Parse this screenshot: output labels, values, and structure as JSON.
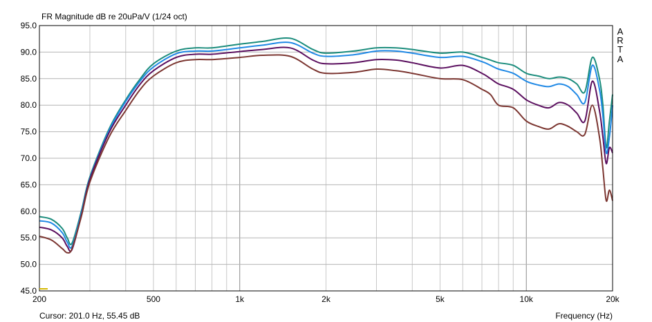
{
  "chart_data": {
    "type": "line",
    "title": "FR Magnitude dB re 20uPa/V (1/24 oct)",
    "xlabel": "Frequency (Hz)",
    "ylabel": "",
    "x_scale": "log",
    "xlim": [
      200,
      20000
    ],
    "ylim": [
      45,
      95
    ],
    "grid": true,
    "y_ticks": [
      "95.0",
      "90.0",
      "85.0",
      "80.0",
      "75.0",
      "70.0",
      "65.0",
      "60.0",
      "55.0",
      "50.0",
      "45.0"
    ],
    "x_ticks": [
      {
        "value": 200,
        "label": "200"
      },
      {
        "value": 500,
        "label": "500"
      },
      {
        "value": 1000,
        "label": "1k"
      },
      {
        "value": 2000,
        "label": "2k"
      },
      {
        "value": 5000,
        "label": "5k"
      },
      {
        "value": 10000,
        "label": "10k"
      },
      {
        "value": 20000,
        "label": "20k"
      }
    ],
    "x": [
      200,
      220,
      240,
      250,
      260,
      280,
      300,
      350,
      400,
      450,
      500,
      600,
      700,
      800,
      1000,
      1200,
      1500,
      1800,
      2000,
      2500,
      3000,
      3500,
      4000,
      5000,
      6000,
      7000,
      7500,
      8000,
      9000,
      10000,
      11000,
      12000,
      13000,
      14000,
      15000,
      16000,
      17000,
      18000,
      18500,
      19000,
      19500,
      20000
    ],
    "series": [
      {
        "color": "#1a8c7c",
        "values": [
          59.0,
          58.5,
          56.8,
          55.0,
          54.0,
          60.0,
          66.5,
          75.5,
          81.0,
          85.0,
          87.8,
          90.2,
          90.8,
          90.8,
          91.5,
          92.0,
          92.6,
          90.5,
          89.8,
          90.2,
          90.8,
          90.8,
          90.5,
          89.8,
          90.0,
          89.0,
          88.5,
          88.0,
          87.5,
          86.0,
          85.5,
          85.0,
          85.3,
          85.0,
          84.0,
          82.5,
          89.0,
          85.0,
          80.0,
          72.0,
          77.0,
          82.0
        ]
      },
      {
        "color": "#1e88e5",
        "values": [
          58.2,
          57.8,
          56.0,
          54.2,
          53.4,
          59.6,
          66.2,
          75.2,
          80.7,
          84.6,
          87.2,
          89.7,
          90.2,
          90.2,
          90.8,
          91.3,
          91.8,
          89.8,
          89.2,
          89.5,
          90.2,
          90.2,
          89.8,
          89.0,
          89.2,
          88.2,
          87.5,
          86.8,
          86.0,
          84.5,
          83.8,
          83.5,
          84.0,
          83.5,
          82.0,
          80.5,
          87.5,
          83.0,
          78.0,
          71.0,
          74.0,
          80.0
        ]
      },
      {
        "color": "#5a0e5e",
        "values": [
          57.0,
          56.5,
          55.0,
          53.4,
          52.8,
          59.2,
          66.0,
          74.8,
          80.0,
          84.0,
          86.5,
          89.0,
          89.6,
          89.6,
          90.1,
          90.5,
          90.8,
          88.5,
          87.8,
          88.0,
          88.6,
          88.5,
          88.0,
          87.0,
          87.5,
          86.0,
          85.0,
          84.0,
          83.0,
          81.0,
          80.0,
          79.5,
          80.5,
          80.0,
          78.5,
          77.0,
          84.5,
          79.0,
          74.0,
          69.0,
          72.0,
          71.0
        ]
      },
      {
        "color": "#7b3530",
        "values": [
          55.3,
          54.6,
          53.0,
          52.2,
          53.0,
          59.0,
          65.5,
          74.0,
          79.0,
          83.0,
          85.5,
          88.0,
          88.6,
          88.6,
          89.0,
          89.4,
          89.2,
          86.8,
          86.0,
          86.2,
          86.8,
          86.5,
          86.0,
          85.0,
          84.8,
          83.0,
          82.0,
          80.0,
          79.5,
          77.0,
          76.0,
          75.5,
          76.5,
          76.0,
          75.0,
          74.5,
          80.0,
          74.0,
          68.0,
          62.0,
          64.0,
          62.0
        ]
      }
    ],
    "annotations": [
      "A",
      "R",
      "T",
      "A"
    ]
  },
  "status": {
    "cursor_text": "Cursor: 201.0 Hz, 55.45 dB",
    "xlabel_text": "Frequency (Hz)"
  }
}
